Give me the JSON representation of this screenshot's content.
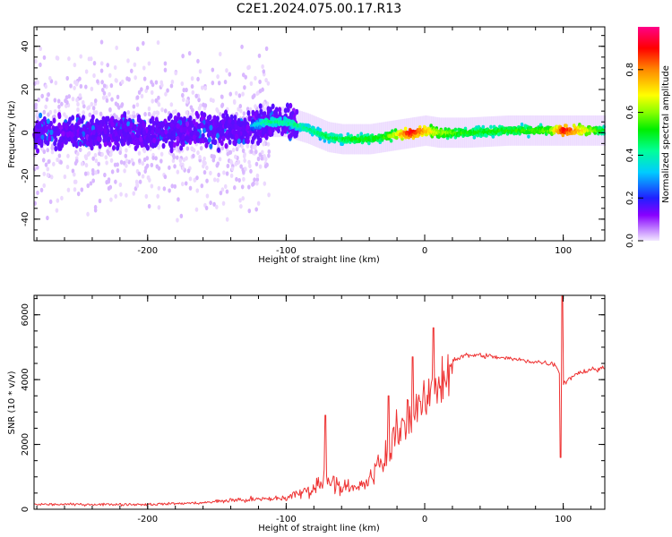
{
  "title": "C2E1.2024.075.00.17.R13",
  "chart_data": [
    {
      "type": "heatmap",
      "xlabel": "Height of straight line (km)",
      "ylabel": "Frequency (Hz)",
      "xlim": [
        -282,
        130
      ],
      "ylim": [
        -50,
        49
      ],
      "xticks": [
        -200,
        -100,
        0,
        100
      ],
      "xtick_labels": [
        "-200",
        "-100",
        "0",
        "100"
      ],
      "yticks": [
        -40,
        -20,
        0,
        20,
        40
      ],
      "ytick_labels": [
        "-40",
        "-20",
        "0",
        "20",
        "40"
      ],
      "ridge": {
        "x": [
          -282,
          -240,
          -200,
          -160,
          -130,
          -115,
          -100,
          -85,
          -70,
          -60,
          -50,
          -40,
          -30,
          -20,
          -10,
          0,
          10,
          30,
          60,
          90,
          100,
          130
        ],
        "freq": [
          0,
          0,
          0,
          1,
          2,
          5,
          5,
          2,
          -2,
          -3,
          -3,
          -3,
          -2,
          -1,
          0,
          1,
          0,
          0,
          1,
          1,
          1,
          1
        ],
        "normalized_amplitude": [
          0.15,
          0.15,
          0.15,
          0.2,
          0.25,
          0.45,
          0.45,
          0.45,
          0.5,
          0.5,
          0.55,
          0.55,
          0.55,
          0.7,
          0.95,
          0.8,
          0.65,
          0.55,
          0.55,
          0.6,
          0.95,
          0.5
        ]
      },
      "colorbar": {
        "label": "Normalized spectral amplitude",
        "range": [
          0,
          1
        ],
        "ticks": [
          0.0,
          0.2,
          0.4,
          0.6,
          0.8
        ],
        "tick_labels": [
          "0.0",
          "0.2",
          "0.4",
          "0.6",
          "0.8"
        ]
      }
    },
    {
      "type": "line",
      "xlabel": "Height of straight line (km)",
      "ylabel": "SNR (10 * v/v)",
      "xlim": [
        -282,
        130
      ],
      "ylim": [
        0,
        6600
      ],
      "color": "#ee3333",
      "xticks": [
        -200,
        -100,
        0,
        100
      ],
      "xtick_labels": [
        "-200",
        "-100",
        "0",
        "100"
      ],
      "yticks": [
        0,
        2000,
        4000,
        6000
      ],
      "ytick_labels": [
        "0",
        "2000",
        "4000",
        "6000"
      ],
      "series": [
        {
          "name": "SNR",
          "x": [
            -282,
            -250,
            -200,
            -160,
            -140,
            -120,
            -100,
            -90,
            -80,
            -70,
            -60,
            -50,
            -40,
            -30,
            -20,
            -10,
            0,
            5,
            10,
            15,
            20,
            30,
            40,
            50,
            60,
            70,
            80,
            90,
            95,
            100,
            110,
            120,
            130
          ],
          "y": [
            150,
            150,
            150,
            200,
            280,
            300,
            350,
            500,
            650,
            1000,
            700,
            600,
            900,
            1500,
            2400,
            3000,
            3200,
            3700,
            3800,
            4200,
            4600,
            4750,
            4750,
            4700,
            4650,
            4600,
            4550,
            4500,
            4450,
            3900,
            4200,
            4300,
            4350
          ]
        }
      ],
      "annotations": {
        "peaks": [
          {
            "x": -72,
            "y": 2900
          },
          {
            "x": -26,
            "y": 3500
          },
          {
            "x": -9,
            "y": 4700
          },
          {
            "x": 6,
            "y": 5600
          },
          {
            "x": 99,
            "y": 6600
          },
          {
            "x": 98,
            "y": 1600
          }
        ]
      }
    }
  ]
}
